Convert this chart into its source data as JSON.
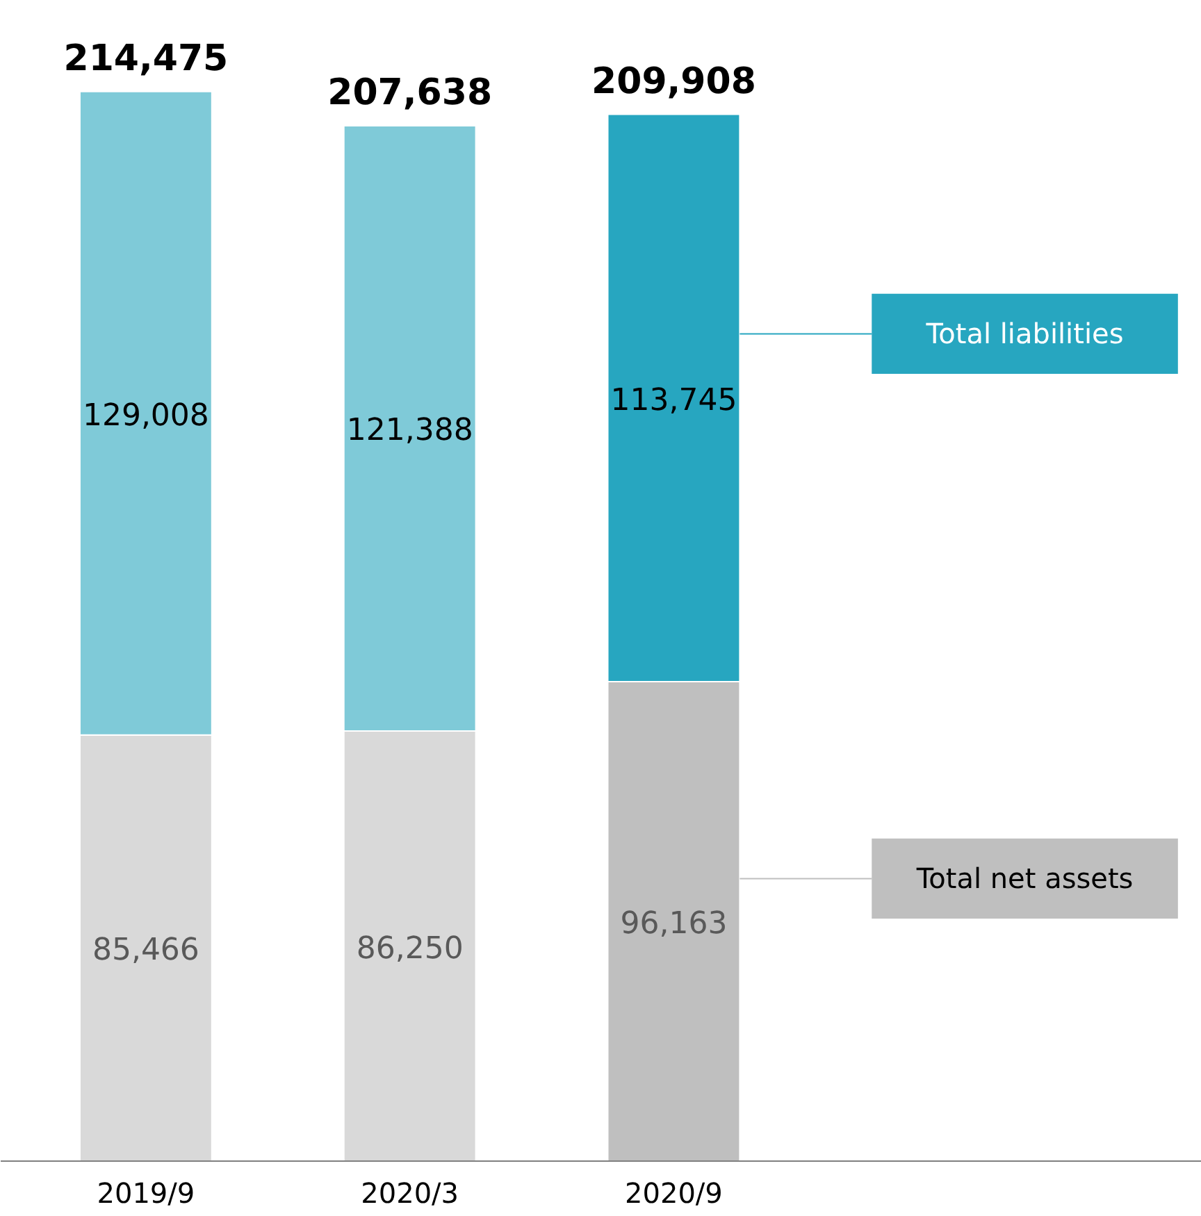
{
  "chart_data": {
    "type": "bar",
    "stacked": true,
    "categories": [
      "2019/9",
      "2020/3",
      "2020/9"
    ],
    "series": [
      {
        "name": "Total net assets",
        "color": "#bfbfbf",
        "colors": [
          "#d9d9d9",
          "#d9d9d9",
          "#bfbfbf"
        ],
        "values": [
          85466,
          86250,
          96163
        ],
        "value_labels": [
          "85,466",
          "86,250",
          "96,163"
        ]
      },
      {
        "name": "Total liabilities",
        "color": "#27a6c0",
        "colors": [
          "#7fcad8",
          "#7fcad8",
          "#27a6c0"
        ],
        "values": [
          129008,
          121388,
          113745
        ],
        "value_labels": [
          "129,008",
          "121,388",
          "113,745"
        ]
      }
    ],
    "totals": [
      "214,475",
      "207,638",
      "209,908"
    ],
    "legend": "right",
    "grid": false
  }
}
